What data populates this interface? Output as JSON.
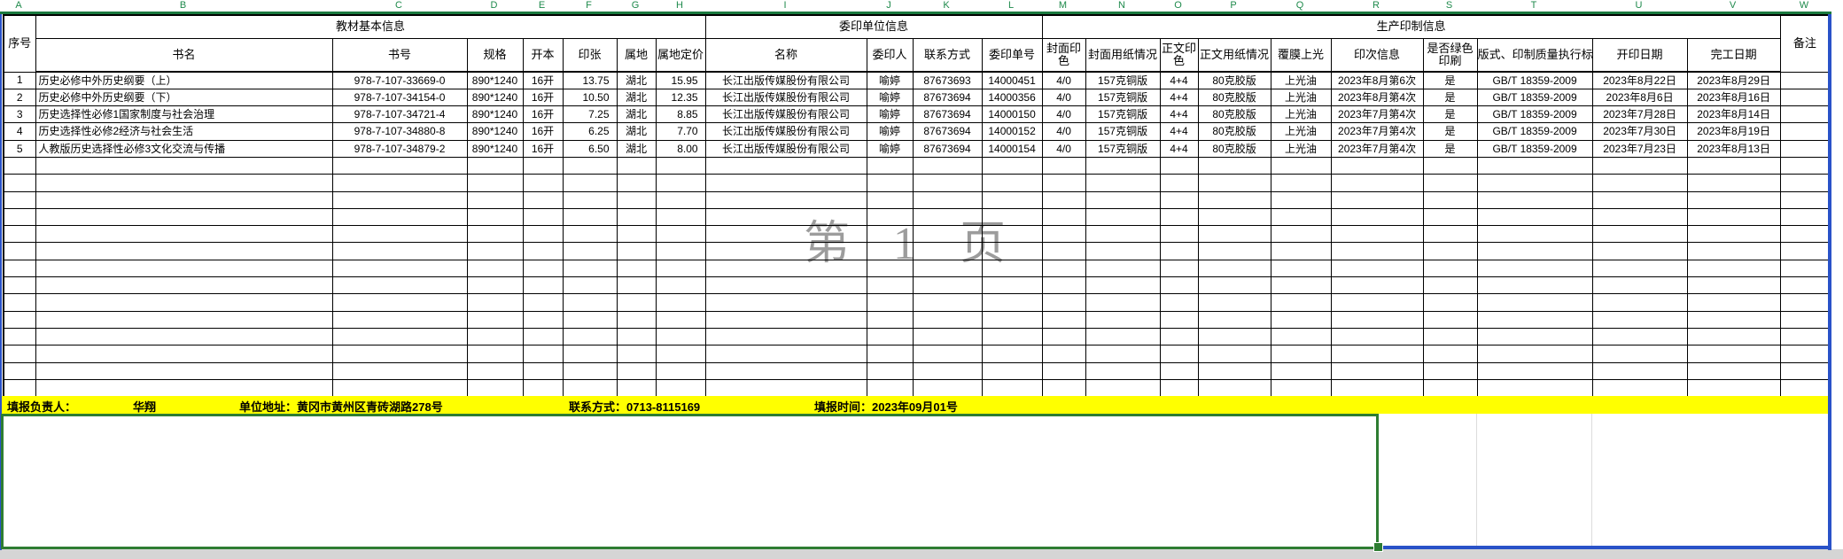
{
  "column_letters": [
    "A",
    "B",
    "C",
    "D",
    "E",
    "F",
    "G",
    "H",
    "I",
    "J",
    "K",
    "L",
    "M",
    "N",
    "O",
    "P",
    "Q",
    "R",
    "S",
    "T",
    "U",
    "V",
    "W"
  ],
  "page_watermark": "第 1 页",
  "table": {
    "group_headers": {
      "serial": "序号",
      "basic": "教材基本信息",
      "unit": "委印单位信息",
      "production": "生产印制信息",
      "remark": "备注"
    },
    "sub_headers": [
      "书名",
      "书号",
      "规格",
      "开本",
      "印张",
      "属地",
      "属地定价",
      "名称",
      "委印人",
      "联系方式",
      "委印单号",
      "封面印色",
      "封面用纸情况",
      "正文印色",
      "正文用纸情况",
      "覆膜上光",
      "印次信息",
      "是否绿色印刷",
      "版式、印制质量执行标准",
      "开印日期",
      "完工日期"
    ],
    "rows": [
      [
        "1",
        "历史必修中外历史纲要（上）",
        "978-7-107-33669-0",
        "890*1240",
        "16开",
        "13.75",
        "湖北",
        "15.95",
        "长江出版传媒股份有限公司",
        "喻婷",
        "87673693",
        "14000451",
        "4/0",
        "157克铜版",
        "4+4",
        "80克胶版",
        "上光油",
        "2023年8月第6次",
        "是",
        "GB/T 18359-2009",
        "2023年8月22日",
        "2023年8月29日",
        ""
      ],
      [
        "2",
        "历史必修中外历史纲要（下）",
        "978-7-107-34154-0",
        "890*1240",
        "16开",
        "10.50",
        "湖北",
        "12.35",
        "长江出版传媒股份有限公司",
        "喻婷",
        "87673694",
        "14000356",
        "4/0",
        "157克铜版",
        "4+4",
        "80克胶版",
        "上光油",
        "2023年8月第4次",
        "是",
        "GB/T 18359-2009",
        "2023年8月6日",
        "2023年8月16日",
        ""
      ],
      [
        "3",
        "历史选择性必修1国家制度与社会治理",
        "978-7-107-34721-4",
        "890*1240",
        "16开",
        "7.25",
        "湖北",
        "8.85",
        "长江出版传媒股份有限公司",
        "喻婷",
        "87673694",
        "14000150",
        "4/0",
        "157克铜版",
        "4+4",
        "80克胶版",
        "上光油",
        "2023年7月第4次",
        "是",
        "GB/T 18359-2009",
        "2023年7月28日",
        "2023年8月14日",
        ""
      ],
      [
        "4",
        "历史选择性必修2经济与社会生活",
        "978-7-107-34880-8",
        "890*1240",
        "16开",
        "6.25",
        "湖北",
        "7.70",
        "长江出版传媒股份有限公司",
        "喻婷",
        "87673694",
        "14000152",
        "4/0",
        "157克铜版",
        "4+4",
        "80克胶版",
        "上光油",
        "2023年7月第4次",
        "是",
        "GB/T 18359-2009",
        "2023年7月30日",
        "2023年8月19日",
        ""
      ],
      [
        "5",
        "人教版历史选择性必修3文化交流与传播",
        "978-7-107-34879-2",
        "890*1240",
        "16开",
        "6.50",
        "湖北",
        "8.00",
        "长江出版传媒股份有限公司",
        "喻婷",
        "87673694",
        "14000154",
        "4/0",
        "157克铜版",
        "4+4",
        "80克胶版",
        "上光油",
        "2023年7月第4次",
        "是",
        "GB/T 18359-2009",
        "2023年7月23日",
        "2023年8月13日",
        ""
      ]
    ],
    "empty_row_count": 14
  },
  "footer": {
    "preparer_label": "填报负责人：",
    "preparer": "华翔",
    "address_label": "单位地址：",
    "address": "黄冈市黄州区青砖湖路278号",
    "contact_label": "联系方式：",
    "contact": "0713-8115169",
    "date_label": "填报时间：",
    "date": "2023年09月01号"
  },
  "colors": {
    "column_letter_green": "#1F8A4C",
    "page_break_blue": "#2952C8",
    "footer_yellow": "#FFFF00",
    "selection_green": "#2E7D32",
    "watermark_gray": "#9C9C9C"
  }
}
